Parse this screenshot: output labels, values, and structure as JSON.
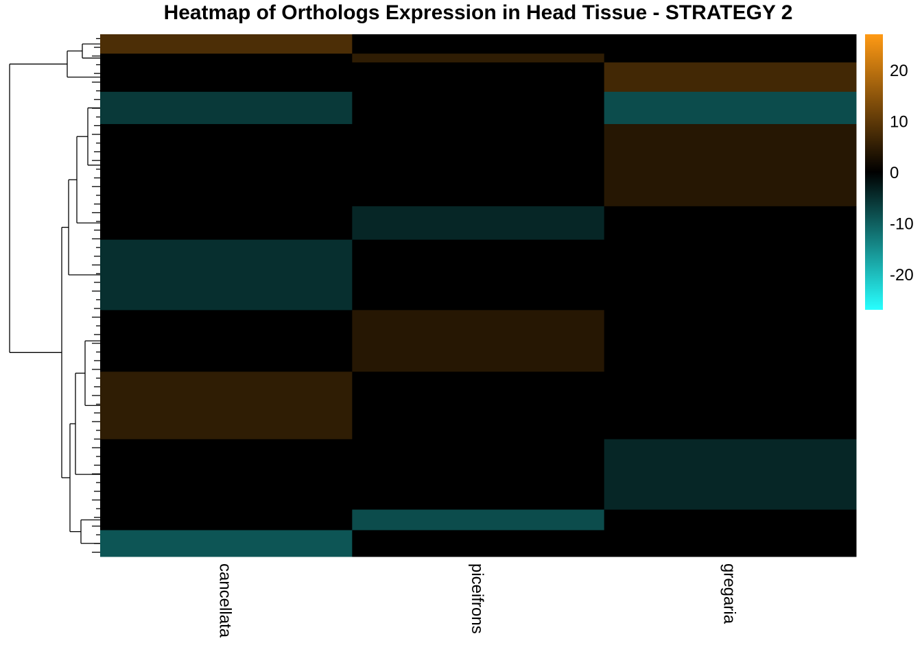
{
  "chart_data": {
    "type": "heatmap",
    "title": "Heatmap of Orthologs Expression in Head Tissue - STRATEGY 2",
    "columns": [
      "cancellata",
      "piceifrons",
      "gregaria"
    ],
    "row_dendrogram": true,
    "color_scale": {
      "min": -27,
      "max": 27,
      "colors": {
        "low": "#28ffff",
        "mid": "#000000",
        "high": "#ff9a14"
      },
      "ticks": [
        20,
        10,
        0,
        -10,
        -20
      ]
    },
    "blocks": [
      {
        "rows": 33,
        "values": [
          8,
          0,
          0
        ]
      },
      {
        "rows": 15,
        "values": [
          0,
          5,
          0
        ]
      },
      {
        "rows": 50,
        "values": [
          0,
          0,
          7
        ]
      },
      {
        "rows": 55,
        "values": [
          -6,
          0,
          -8
        ]
      },
      {
        "rows": 140,
        "values": [
          0,
          0,
          4
        ]
      },
      {
        "rows": 57,
        "values": [
          0,
          -4,
          0
        ]
      },
      {
        "rows": 120,
        "values": [
          -5,
          0,
          0
        ]
      },
      {
        "rows": 105,
        "values": [
          0,
          4,
          0
        ]
      },
      {
        "rows": 115,
        "values": [
          5,
          0,
          0
        ]
      },
      {
        "rows": 120,
        "values": [
          0,
          0,
          -4
        ]
      },
      {
        "rows": 35,
        "values": [
          0,
          -8,
          0
        ]
      },
      {
        "rows": 45,
        "values": [
          -9,
          0,
          0
        ]
      }
    ]
  }
}
